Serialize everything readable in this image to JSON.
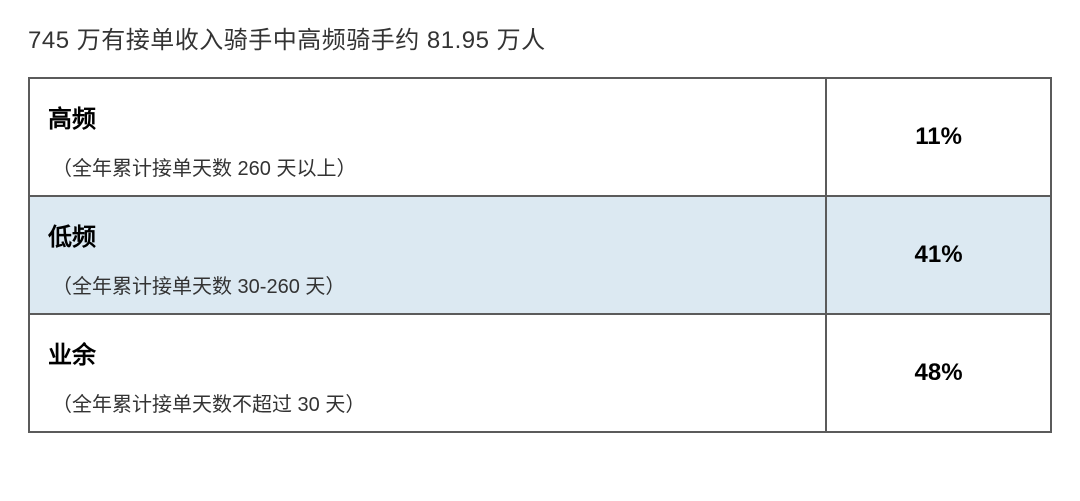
{
  "title": "745 万有接单收入骑手中高频骑手约 81.95 万人",
  "table": {
    "type": "table",
    "columns": [
      "category",
      "percent"
    ],
    "border_color": "#5b5b5b",
    "highlight_color": "#dce9f2",
    "background_color": "#ffffff",
    "title_fontsize": 24,
    "label_fontsize": 24,
    "note_fontsize": 20,
    "percent_fontsize": 24,
    "text_color": "#000000",
    "title_color": "#333333",
    "rows": [
      {
        "label": "高频",
        "note": "（全年累计接单天数 260 天以上）",
        "percent": "11%",
        "highlight": false
      },
      {
        "label": "低频",
        "note": "（全年累计接单天数 30-260 天）",
        "percent": "41%",
        "highlight": true
      },
      {
        "label": "业余",
        "note": "（全年累计接单天数不超过 30 天）",
        "percent": "48%",
        "highlight": false
      }
    ]
  }
}
